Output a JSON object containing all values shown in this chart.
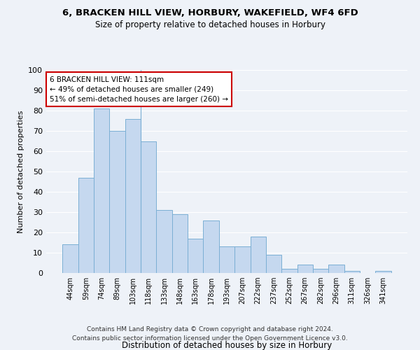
{
  "title1": "6, BRACKEN HILL VIEW, HORBURY, WAKEFIELD, WF4 6FD",
  "title2": "Size of property relative to detached houses in Horbury",
  "xlabel": "Distribution of detached houses by size in Horbury",
  "ylabel": "Number of detached properties",
  "categories": [
    "44sqm",
    "59sqm",
    "74sqm",
    "89sqm",
    "103sqm",
    "118sqm",
    "133sqm",
    "148sqm",
    "163sqm",
    "178sqm",
    "193sqm",
    "207sqm",
    "222sqm",
    "237sqm",
    "252sqm",
    "267sqm",
    "282sqm",
    "296sqm",
    "311sqm",
    "326sqm",
    "341sqm"
  ],
  "values": [
    14,
    47,
    81,
    70,
    76,
    65,
    31,
    29,
    17,
    26,
    13,
    13,
    18,
    9,
    2,
    4,
    2,
    4,
    1,
    0,
    1
  ],
  "bar_color": "#c5d8ef",
  "bar_edge_color": "#7bafd4",
  "annotation_box_text": "6 BRACKEN HILL VIEW: 111sqm\n← 49% of detached houses are smaller (249)\n51% of semi-detached houses are larger (260) →",
  "annotation_box_color": "#ffffff",
  "annotation_box_edge_color": "#cc0000",
  "vline_bar_index": 4,
  "ylim": [
    0,
    100
  ],
  "yticks": [
    0,
    10,
    20,
    30,
    40,
    50,
    60,
    70,
    80,
    90,
    100
  ],
  "footer_line1": "Contains HM Land Registry data © Crown copyright and database right 2024.",
  "footer_line2": "Contains public sector information licensed under the Open Government Licence v3.0.",
  "bg_color": "#eef2f8",
  "plot_bg_color": "#eef2f8",
  "grid_color": "#ffffff"
}
